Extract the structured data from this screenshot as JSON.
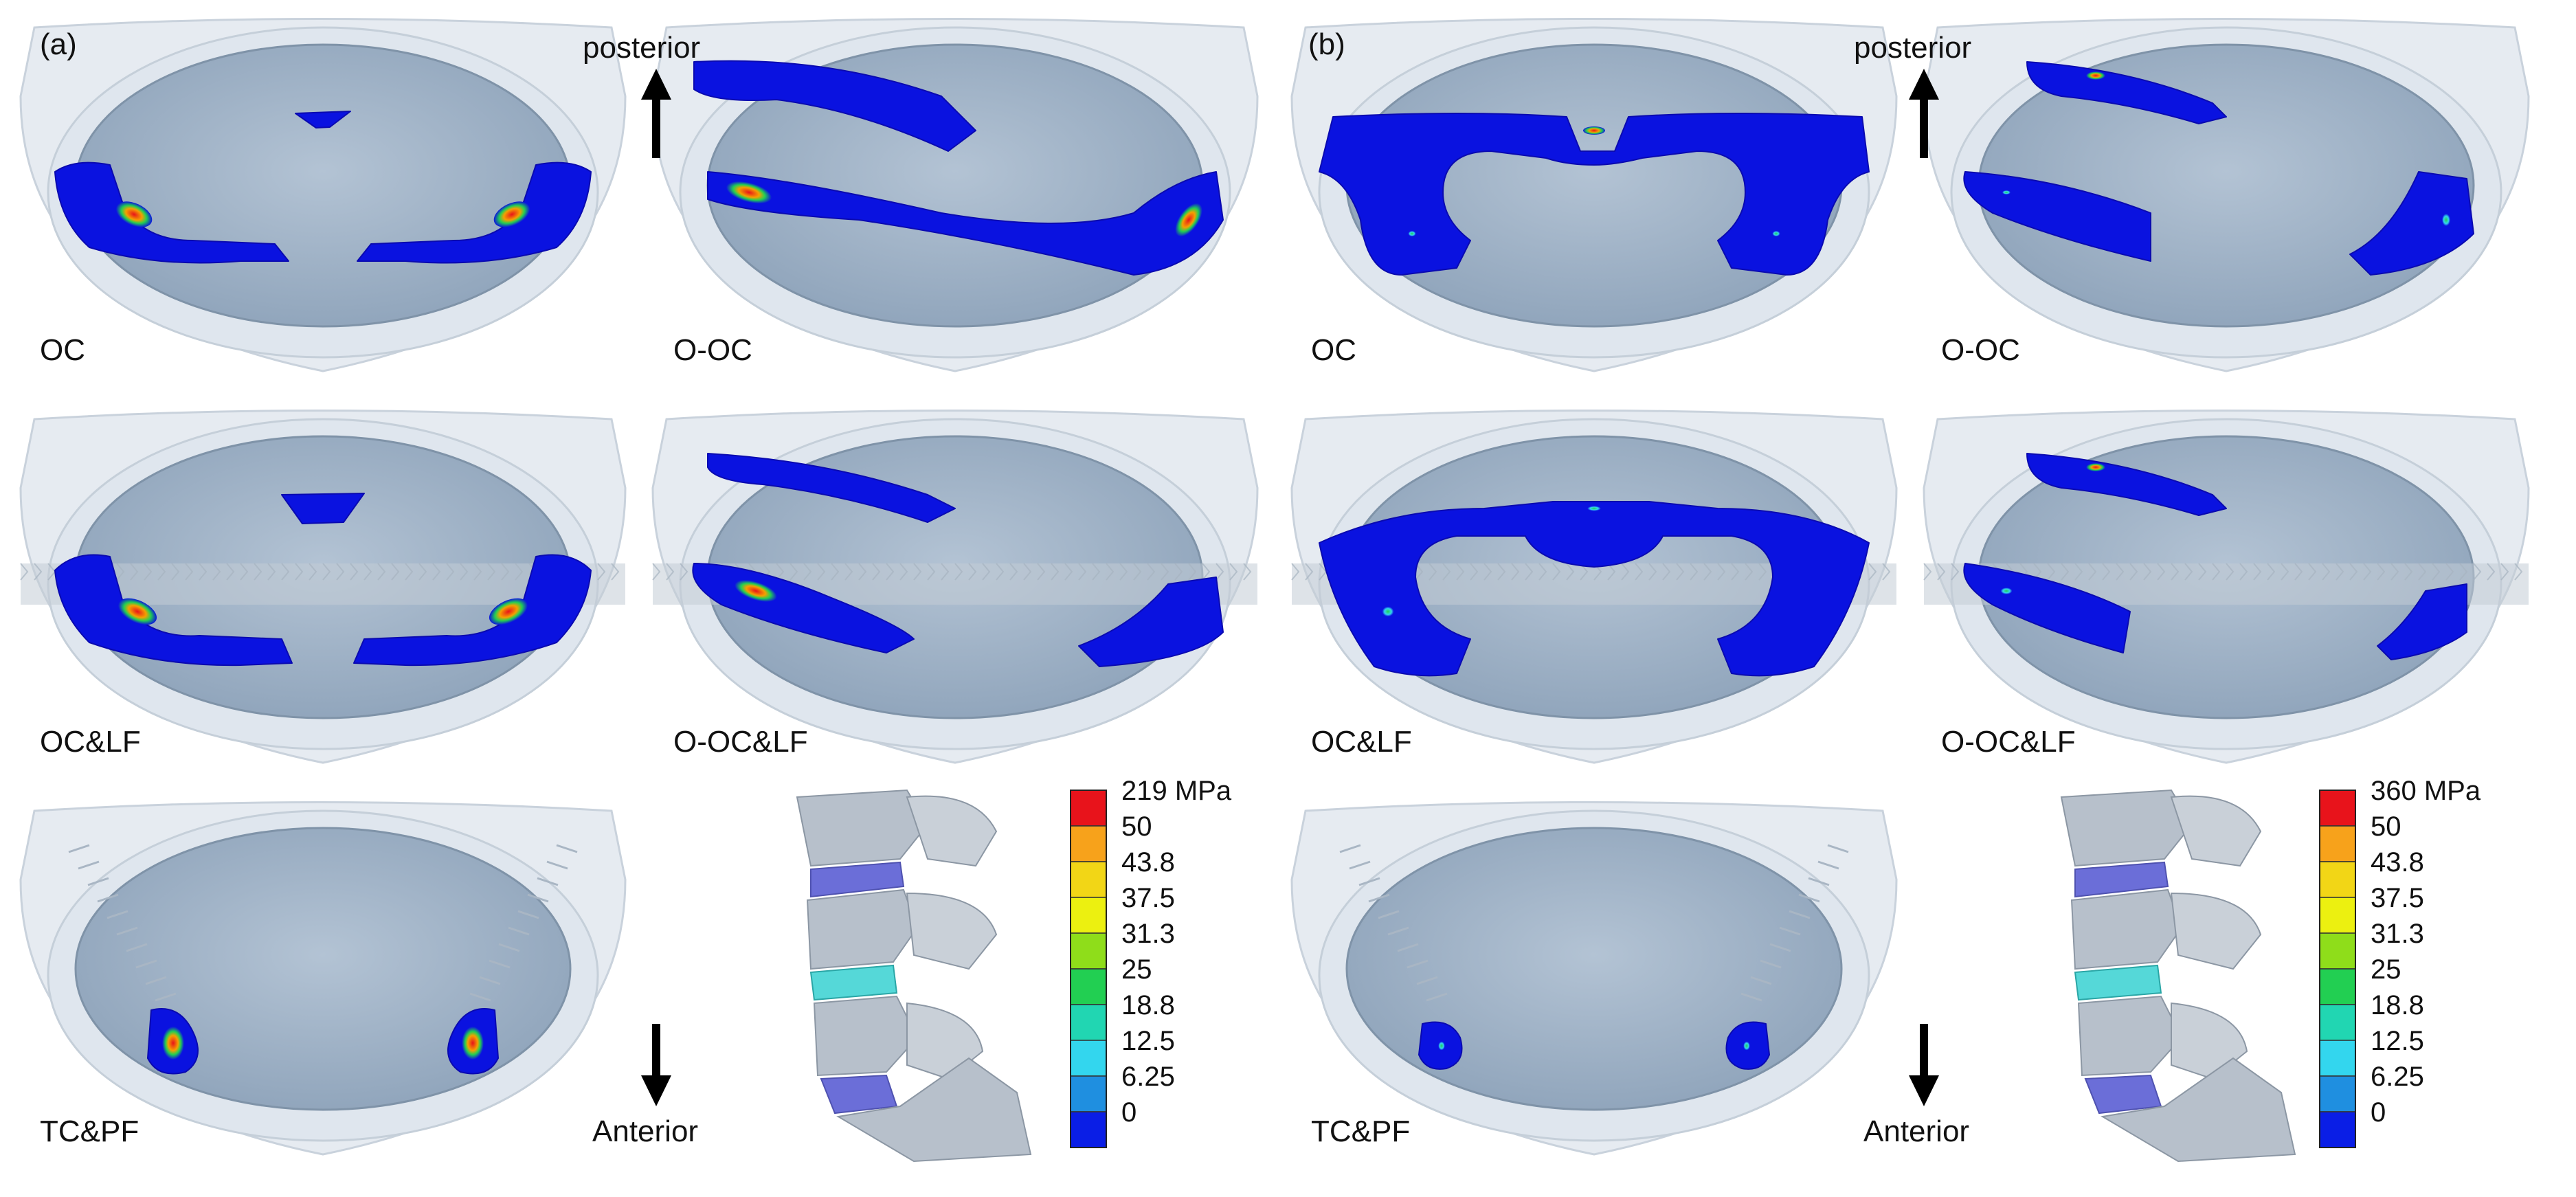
{
  "panels": [
    {
      "id": "a",
      "label": "(a)",
      "cases": [
        {
          "label": "OC",
          "pattern": "OC",
          "peak_scale": 1.0
        },
        {
          "label": "O-OC",
          "pattern": "O-OC",
          "peak_scale": 1.0
        },
        {
          "label": "OC&LF",
          "pattern": "OCLF",
          "peak_scale": 1.0
        },
        {
          "label": "O-OC&LF",
          "pattern": "O-OCLF",
          "peak_scale": 1.0
        },
        {
          "label": "TC&PF",
          "pattern": "TCPF",
          "peak_scale": 1.0
        }
      ],
      "legend": {
        "max_label": "219 MPa",
        "max_value": 219
      }
    },
    {
      "id": "b",
      "label": "(b)",
      "cases": [
        {
          "label": "OC",
          "pattern": "OC-b",
          "peak_scale": 0.4
        },
        {
          "label": "O-OC",
          "pattern": "O-OC-b",
          "peak_scale": 0.5
        },
        {
          "label": "OC&LF",
          "pattern": "OCLF-b",
          "peak_scale": 0.6
        },
        {
          "label": "O-OC&LF",
          "pattern": "O-OCLF-b",
          "peak_scale": 0.6
        },
        {
          "label": "TC&PF",
          "pattern": "TCPF-b",
          "peak_scale": 0.35
        }
      ],
      "legend": {
        "max_label": "360 MPa",
        "max_value": 360
      }
    }
  ],
  "directions": {
    "posterior": "posterior",
    "anterior": "Anterior"
  },
  "legend_ticks": [
    "50",
    "43.8",
    "37.5",
    "31.3",
    "25",
    "18.8",
    "12.5",
    "6.25",
    "0"
  ],
  "legend_colors": [
    "#e8131b",
    "#f7a21b",
    "#f2d616",
    "#ecf010",
    "#8fdd1a",
    "#22cf52",
    "#21d6b2",
    "#33d6ee",
    "#1f8fe0",
    "#0a1ee6"
  ],
  "colors": {
    "contact_blue": "#0a12e0",
    "endplate_fill": "#9db1c7",
    "cup_fill": "#e6ebf1",
    "spine_grey": "#b7c0cb",
    "disc_purple": "#6b6ed8",
    "disc_cyan": "#55d8d8"
  }
}
